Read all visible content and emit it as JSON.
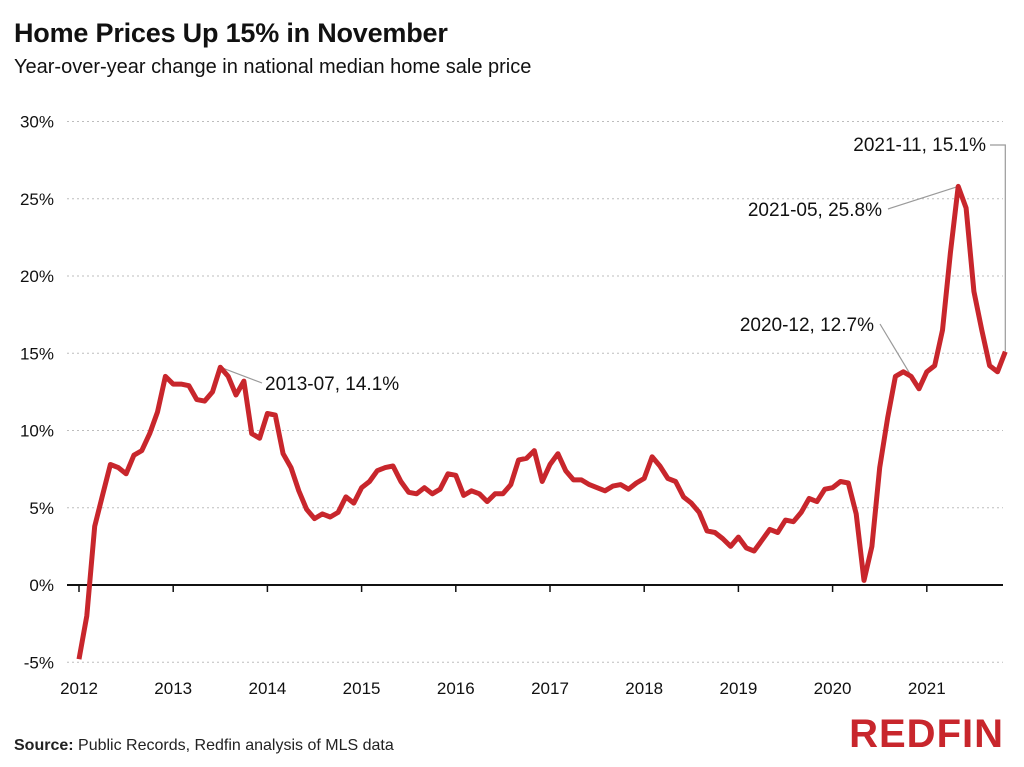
{
  "header": {
    "title": "Home Prices Up 15% in November",
    "subtitle": "Year-over-year change in national median home sale price"
  },
  "footer": {
    "source_label": "Source:",
    "source_text": "Public Records, Redfin analysis of MLS data",
    "logo": "REDFIN"
  },
  "colors": {
    "line": "#c8262c",
    "grid": "#bdbdbd",
    "axis": "#111111",
    "leader": "#9a9a9a"
  },
  "chart_data": {
    "type": "line",
    "title": "Home Prices Up 15% in November",
    "subtitle": "Year-over-year change in national median home sale price",
    "ylim": [
      -5,
      30
    ],
    "yticks": [
      -5,
      0,
      5,
      10,
      15,
      20,
      25,
      30
    ],
    "ytick_labels": [
      "-5%",
      "0%",
      "5%",
      "10%",
      "15%",
      "20%",
      "25%",
      "30%"
    ],
    "xticks": [
      "2012",
      "2013",
      "2014",
      "2015",
      "2016",
      "2017",
      "2018",
      "2019",
      "2020",
      "2021"
    ],
    "grid": "horizontal dotted",
    "series": [
      {
        "start": "2012-01",
        "values": [
          -4.8,
          -2.0,
          3.8,
          5.8,
          7.8,
          7.6,
          7.2,
          8.4,
          8.7,
          9.8,
          11.2,
          13.5,
          13.0,
          13.0,
          12.9,
          12.0,
          11.9,
          12.5,
          14.1,
          13.5,
          12.3,
          13.2,
          9.8,
          9.5,
          11.1,
          11.0,
          8.5,
          7.6,
          6.1,
          4.9,
          4.3,
          4.6,
          4.4,
          4.7,
          5.7,
          5.3,
          6.3,
          6.7,
          7.4,
          7.6,
          7.7,
          6.7,
          6.0,
          5.9,
          6.3,
          5.9,
          6.2,
          7.2,
          7.1,
          5.8,
          6.1,
          5.9,
          5.4,
          5.9,
          5.9,
          6.5,
          8.1,
          8.2,
          8.7,
          6.7,
          7.8,
          8.5,
          7.4,
          6.8,
          6.8,
          6.5,
          6.3,
          6.1,
          6.4,
          6.5,
          6.2,
          6.6,
          6.9,
          8.3,
          7.7,
          6.9,
          6.7,
          5.7,
          5.3,
          4.7,
          3.5,
          3.4,
          3.0,
          2.5,
          3.1,
          2.4,
          2.2,
          2.9,
          3.6,
          3.4,
          4.2,
          4.1,
          4.7,
          5.6,
          5.4,
          6.2,
          6.3,
          6.7,
          6.6,
          4.6,
          0.3,
          2.5,
          7.6,
          10.8,
          13.5,
          13.8,
          13.5,
          12.7,
          13.8,
          14.2,
          16.5,
          21.5,
          25.8,
          24.4,
          19.0,
          16.5,
          14.2,
          13.8,
          15.1
        ]
      }
    ],
    "annotations": [
      {
        "date": "2013-07",
        "value": 14.1,
        "label": "2013-07, 14.1%"
      },
      {
        "date": "2020-12",
        "value": 12.7,
        "label": "2020-12, 12.7%"
      },
      {
        "date": "2021-05",
        "value": 25.8,
        "label": "2021-05, 25.8%"
      },
      {
        "date": "2021-11",
        "value": 15.1,
        "label": "2021-11, 15.1%"
      }
    ]
  }
}
